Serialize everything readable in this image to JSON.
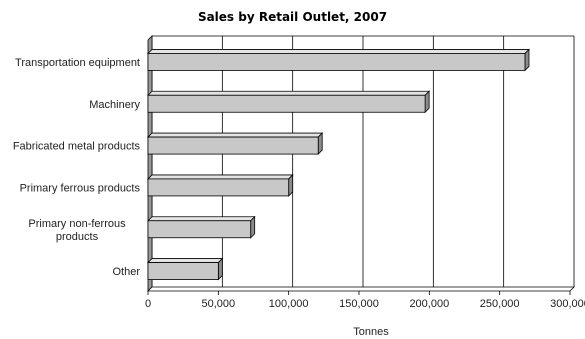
{
  "chart_data": {
    "type": "bar",
    "orientation": "horizontal",
    "title": "Sales by Retail Outlet, 2007",
    "xlabel": "Tonnes",
    "ylabel": "",
    "categories": [
      "Transportation equipment",
      "Machinery",
      "Fabricated metal products",
      "Primary ferrous products",
      "Primary non-ferrous products",
      "Other"
    ],
    "category_label_lines": [
      [
        "Transportation equipment"
      ],
      [
        "Machinery"
      ],
      [
        "Fabricated metal products"
      ],
      [
        "Primary ferrous products"
      ],
      [
        "Primary non-ferrous",
        "products"
      ],
      [
        "Other"
      ]
    ],
    "values": [
      268000,
      197000,
      121000,
      100000,
      73000,
      50000
    ],
    "xlim": [
      0,
      300000
    ],
    "xticks": [
      0,
      50000,
      100000,
      150000,
      200000,
      250000,
      300000
    ],
    "xtick_labels": [
      "0",
      "50,000",
      "100,000",
      "150,000",
      "200,000",
      "250,000",
      "300,000"
    ],
    "grid": "vertical",
    "style": "3d",
    "bar_color": "#c8c8c8"
  }
}
